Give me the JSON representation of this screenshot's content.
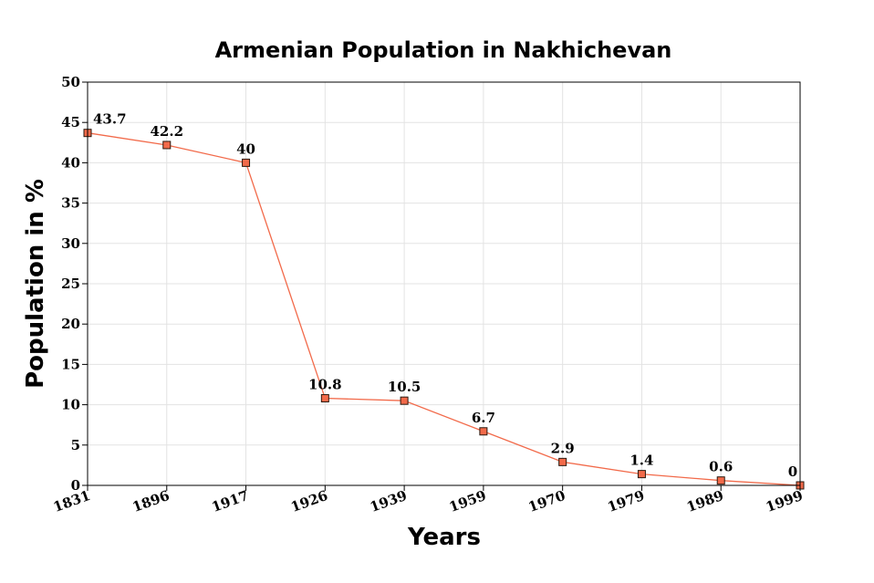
{
  "chart_data": {
    "type": "line",
    "title": "Armenian Population in Nakhichevan",
    "xlabel": "Years",
    "ylabel": "Population in %",
    "categories": [
      "1831",
      "1896",
      "1917",
      "1926",
      "1939",
      "1959",
      "1970",
      "1979",
      "1989",
      "1999"
    ],
    "series": [
      {
        "values": [
          43.7,
          42.2,
          40,
          10.8,
          10.5,
          6.7,
          2.9,
          1.4,
          0.6,
          0
        ]
      }
    ],
    "data_labels": [
      "43.7",
      "42.2",
      "40",
      "10.8",
      "10.5",
      "6.7",
      "2.9",
      "1.4",
      "0.6",
      "0"
    ],
    "ylim": [
      0,
      50
    ],
    "yticks": [
      "0",
      "5",
      "10",
      "15",
      "20",
      "25",
      "30",
      "35",
      "40",
      "45",
      "50"
    ],
    "grid": true,
    "legend": "none",
    "colors": {
      "line": "#f26a4a",
      "marker_fill": "#f26a4a",
      "marker_stroke": "#2a1a10"
    }
  }
}
